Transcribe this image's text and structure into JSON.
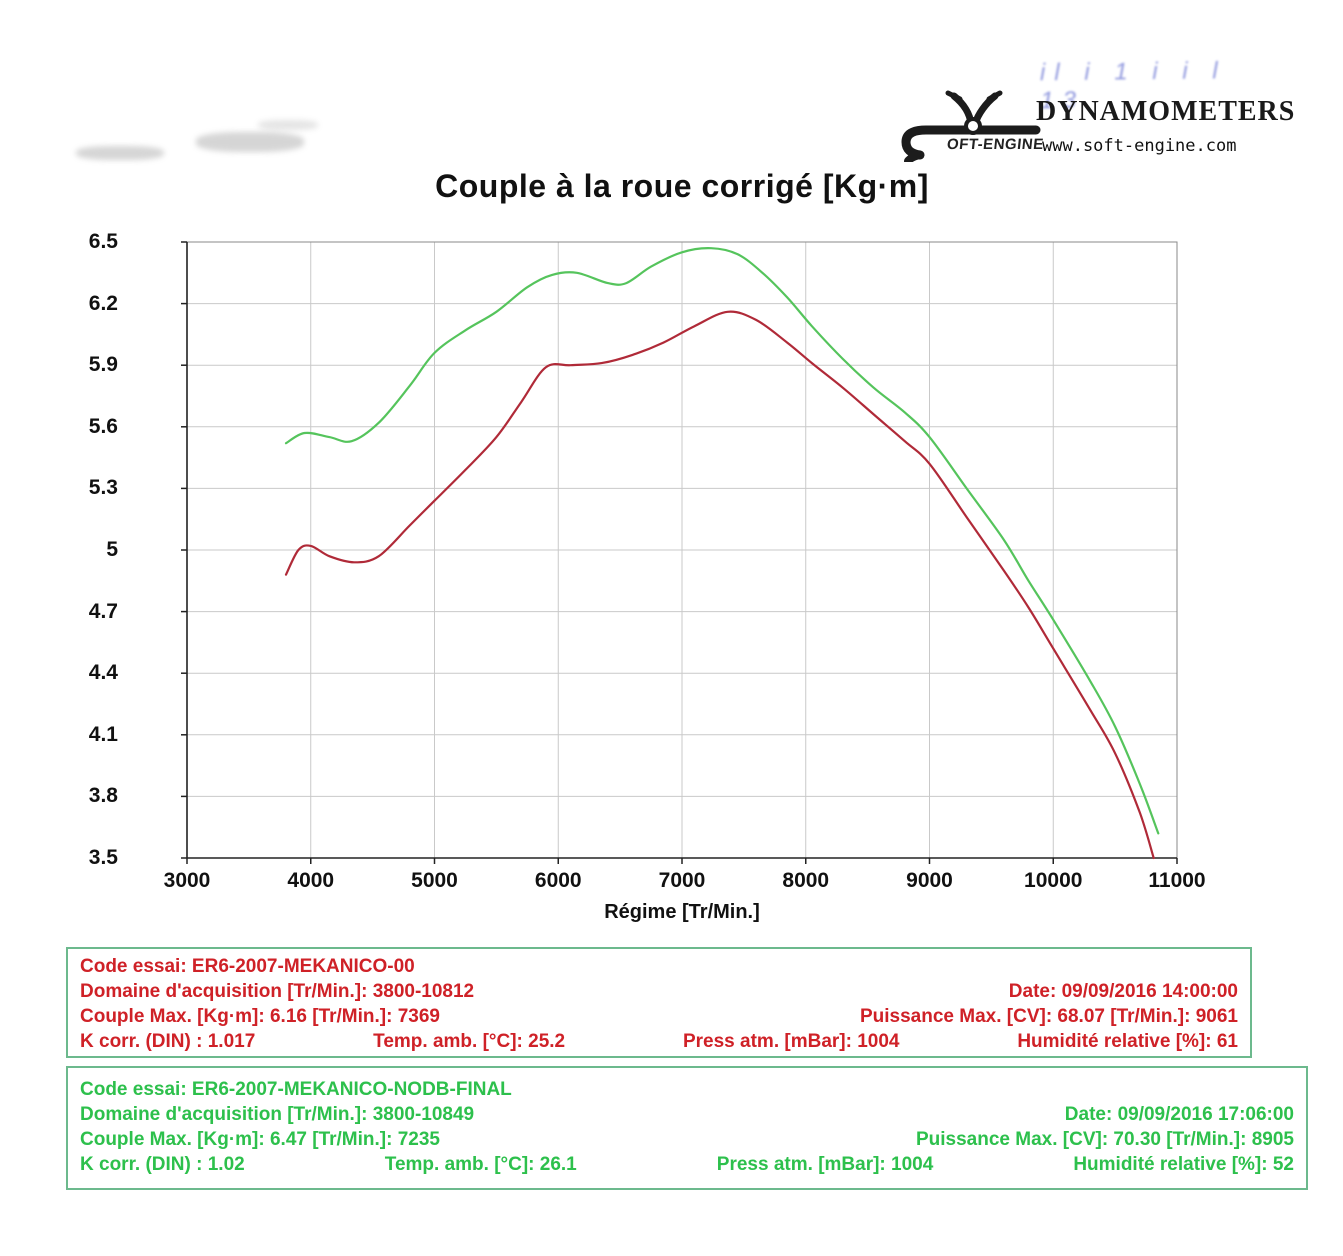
{
  "header": {
    "handwriting": "il i 1 i  i l  13",
    "brand": "DYNAMOMETERS",
    "website": "www.soft-engine.com",
    "logo_text": "OFT-ENGINE"
  },
  "chart_data": {
    "type": "line",
    "title": "Couple à la roue corrigé [Kg·m]",
    "xlabel": "Régime [Tr/Min.]",
    "ylabel": "",
    "xlim": [
      3000,
      11000
    ],
    "ylim": [
      3.5,
      6.5
    ],
    "x_ticks": [
      3000,
      4000,
      5000,
      6000,
      7000,
      8000,
      9000,
      10000,
      11000
    ],
    "y_ticks": [
      3.5,
      3.8,
      4.1,
      4.4,
      4.7,
      5,
      5.3,
      5.6,
      5.9,
      6.2,
      6.5
    ],
    "grid": true,
    "legend_position": "none",
    "grid_color": "#c9c9c9",
    "axis_color": "#333333",
    "series": [
      {
        "name": "ER6-2007-MEKANICO-00",
        "color": "#b02a38",
        "points": [
          [
            3800,
            4.88
          ],
          [
            3900,
            5.0
          ],
          [
            4000,
            5.02
          ],
          [
            4150,
            4.97
          ],
          [
            4350,
            4.94
          ],
          [
            4550,
            4.97
          ],
          [
            4800,
            5.12
          ],
          [
            5000,
            5.24
          ],
          [
            5250,
            5.39
          ],
          [
            5500,
            5.55
          ],
          [
            5700,
            5.72
          ],
          [
            5900,
            5.89
          ],
          [
            6100,
            5.9
          ],
          [
            6350,
            5.91
          ],
          [
            6600,
            5.95
          ],
          [
            6850,
            6.01
          ],
          [
            7100,
            6.09
          ],
          [
            7369,
            6.16
          ],
          [
            7600,
            6.12
          ],
          [
            7850,
            6.01
          ],
          [
            8050,
            5.91
          ],
          [
            8300,
            5.79
          ],
          [
            8550,
            5.66
          ],
          [
            8800,
            5.53
          ],
          [
            9000,
            5.42
          ],
          [
            9300,
            5.16
          ],
          [
            9600,
            4.9
          ],
          [
            9800,
            4.72
          ],
          [
            10000,
            4.52
          ],
          [
            10300,
            4.22
          ],
          [
            10500,
            4.01
          ],
          [
            10700,
            3.72
          ],
          [
            10812,
            3.5
          ]
        ]
      },
      {
        "name": "ER6-2007-MEKANICO-NODB-FINAL",
        "color": "#55c45c",
        "points": [
          [
            3800,
            5.52
          ],
          [
            3950,
            5.57
          ],
          [
            4150,
            5.55
          ],
          [
            4330,
            5.53
          ],
          [
            4550,
            5.62
          ],
          [
            4800,
            5.8
          ],
          [
            5000,
            5.96
          ],
          [
            5250,
            6.07
          ],
          [
            5500,
            6.16
          ],
          [
            5750,
            6.28
          ],
          [
            5950,
            6.34
          ],
          [
            6150,
            6.35
          ],
          [
            6400,
            6.3
          ],
          [
            6550,
            6.3
          ],
          [
            6750,
            6.38
          ],
          [
            7000,
            6.45
          ],
          [
            7235,
            6.47
          ],
          [
            7450,
            6.44
          ],
          [
            7650,
            6.35
          ],
          [
            7850,
            6.23
          ],
          [
            8050,
            6.09
          ],
          [
            8300,
            5.93
          ],
          [
            8550,
            5.79
          ],
          [
            8800,
            5.67
          ],
          [
            9000,
            5.55
          ],
          [
            9300,
            5.3
          ],
          [
            9600,
            5.05
          ],
          [
            9800,
            4.85
          ],
          [
            10000,
            4.66
          ],
          [
            10300,
            4.36
          ],
          [
            10500,
            4.14
          ],
          [
            10700,
            3.86
          ],
          [
            10849,
            3.62
          ]
        ]
      }
    ]
  },
  "info_boxes": [
    {
      "text_color": "#cf2127",
      "code_label": "Code essai: ER6-2007-MEKANICO-00",
      "domain": "Domaine d'acquisition [Tr/Min.]: 3800-10812",
      "date": "Date: 09/09/2016   14:00:00",
      "couple_max": "Couple Max. [Kg·m]: 6.16   [Tr/Min.]: 7369",
      "puissance_max": "Puissance Max. [CV]: 68.07   [Tr/Min.]: 9061",
      "k_corr": "K corr. (DIN) : 1.017",
      "temp": "Temp. amb. [°C]: 25.2",
      "press": "Press atm. [mBar]: 1004",
      "humidity": "Humidité relative [%]: 61"
    },
    {
      "text_color": "#2dc04c",
      "code_label": "Code essai: ER6-2007-MEKANICO-NODB-FINAL",
      "domain": "Domaine d'acquisition [Tr/Min.]: 3800-10849",
      "date": "Date: 09/09/2016   17:06:00",
      "couple_max": "Couple Max. [Kg·m]: 6.47   [Tr/Min.]: 7235",
      "puissance_max": "Puissance Max. [CV]: 70.30   [Tr/Min.]: 8905",
      "k_corr": "K corr. (DIN) : 1.02",
      "temp": "Temp. amb. [°C]: 26.1",
      "press": "Press atm. [mBar]: 1004",
      "humidity": "Humidité relative [%]: 52"
    }
  ]
}
